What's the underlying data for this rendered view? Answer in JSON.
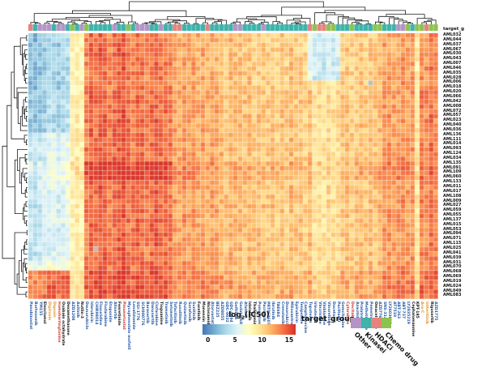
{
  "annotation_label": "target_g",
  "legend": {
    "colorbar_title": {
      "pre": "log",
      "sub": "2",
      "post": "(IC50)"
    },
    "colorbar_ticks": [
      "0",
      "5",
      "10",
      "15"
    ],
    "group_title": "target_group",
    "groups": [
      {
        "label": "Other",
        "color": "#b294c7"
      },
      {
        "label": "Kinasei",
        "color": "#3db3aa"
      },
      {
        "label": "HDACi",
        "color": "#e6837d"
      },
      {
        "label": "Chemo drug",
        "color": "#8cc34f"
      }
    ]
  },
  "chart_data": {
    "type": "heatmap",
    "value_label": "log2(IC50)",
    "value_range": [
      -1,
      16.2
    ],
    "colormap_stops": [
      "#4575b4",
      "#74add1",
      "#abd9e9",
      "#e0f3f8",
      "#ffffbf",
      "#fee090",
      "#fdae61",
      "#f46d43",
      "#d73027"
    ],
    "group_colors": {
      "O": "#b294c7",
      "K": "#3db3aa",
      "H": "#e6837d",
      "C": "#8cc34f"
    },
    "label_colors": {
      "b": "#2458a5",
      "k": "#111111",
      "r": "#cf3a2e",
      "o": "#e2992f"
    },
    "rows": [
      "AML032",
      "AML044",
      "AML037",
      "AML067",
      "AML030",
      "AML043",
      "AML007",
      "AML046",
      "AML035",
      "AML028",
      "AML006",
      "AML018",
      "AML020",
      "AML066",
      "AML042",
      "AML008",
      "AML072",
      "AML057",
      "AML023",
      "AML040",
      "AML036",
      "AML136",
      "AML111",
      "AML014",
      "AML093",
      "AML124",
      "AML034",
      "AML135",
      "AML091",
      "AML109",
      "AML060",
      "AML133",
      "AML011",
      "AML017",
      "AML108",
      "AML009",
      "AML027",
      "AML059",
      "AML055",
      "AML137",
      "AML015",
      "AML053",
      "AML094",
      "AML071",
      "AML115",
      "AML025",
      "AML041",
      "AML039",
      "AML031",
      "AML070",
      "AML068",
      "AML069",
      "AML019",
      "AML024",
      "AML049",
      "AML083"
    ],
    "columns": {
      "names": [
        "Panobinostat",
        "Bortezomib",
        "YM155",
        "Elesclomol",
        "Digitoxin",
        "Digoxin",
        "Homoharringtonine",
        "Ouabain octahydrate",
        "Dexamethasone",
        "AZD1208",
        "Axitinib",
        "Nutlin-3",
        "Daunorubicin",
        "Idarubicin",
        "CHIR98014",
        "Floxuridine",
        "Fludarabine",
        "Etoposide",
        "Alisertib",
        "Fenretinide",
        "Pinometostat",
        "Mycophenolate mofetil",
        "Lenalidomide",
        "SGI-1776",
        "SCH900776",
        "Barasertib",
        "Danusertib",
        "Clofarabine",
        "Tioguanine",
        "Trametinib",
        "Selumetinib",
        "Tofacitinib",
        "Ruxolitinib",
        "Quizartinib",
        "Sorafenib",
        "Sunitinib",
        "Foretinib",
        "Monensin",
        "Niclosamide",
        "Atorvastatin",
        "BEZ235",
        "AZD8055",
        "GDC-0032",
        "GDC-0994",
        "Gefitinib",
        "Gedatolisib",
        "Afatinib",
        "Idelalisib",
        "Thalidomide",
        "Pomalidomide",
        "Pacritinib",
        "PRT062607",
        "Ibrutinib",
        "TAE684",
        "Crenolanib",
        "Doxorubicin",
        "Mitoxantrone",
        "Epirubicin",
        "Teniposide",
        "Camptothecine",
        "Topotecan",
        "Irinotecan",
        "Vincristine",
        "Vinblastine",
        "Vinorelbine",
        "Docetaxel",
        "Paclitaxel",
        "Gemcitabine",
        "Cytarabine",
        "Decitabine",
        "Azacitidine",
        "Pralatrexate",
        "Methotrexate",
        "Pemetrexed",
        "Omacetaxine",
        "AZD7762",
        "SNS-314",
        "LY2603618",
        "AT7519",
        "ABT-263",
        "ABT-737",
        "LY2835219",
        "Cephalomannine",
        "KPT-185",
        "Ara-C",
        "Gilteritinib",
        "Rigosertib",
        "AZD1775"
      ],
      "groups": "HKOOOKOOKCKOCKKKKKOKKCKOOOKKOKKHHKKKKKHKKKKKOOKKKKOKKKKKKKKKHCHHCCKKKCKKKKCCKKKOOCKCCHCC",
      "label_color_codes": "bbbkoorkkbbkbbbbbbbkrbbbbbbbkbbbbbbbkkkbbbbbbbbkkbbbbbbbbbbbbbbbbbbbrrbbbbkbbbbbbbkkookb"
    },
    "col_bases": [
      6,
      5.5,
      6,
      6.5,
      7,
      7,
      6.5,
      7,
      7.5,
      8.5,
      9,
      8.5,
      13.5,
      14.5,
      14,
      15,
      14.5,
      13.5,
      14.2,
      14.8,
      15,
      14,
      13.6,
      14.4,
      14,
      13.5,
      14.2,
      14.6,
      13.8,
      14,
      13.6,
      12.5,
      12,
      12.8,
      12.2,
      12.6,
      12,
      12.4,
      11.8,
      12.2,
      12,
      11.5,
      11,
      11.8,
      11.2,
      11.5,
      11,
      11.4,
      10.8,
      11.2,
      11,
      10.8,
      11.2,
      10.5,
      11,
      10.6,
      11.4,
      10.8,
      11,
      10.5,
      11.2,
      9.5,
      9.8,
      9.4,
      10,
      9.6,
      9.8,
      10.8,
      11.2,
      10.6,
      11,
      11.4,
      10.8,
      11.2,
      11,
      11.5,
      12.5,
      12.8,
      12.2,
      12.6,
      13,
      12.4,
      12.8,
      9.2,
      13.5,
      13,
      14,
      13.2
    ],
    "row_offsets": [
      -0.3,
      -0.3,
      -0.3,
      -0.3,
      -0.3,
      -0.3,
      -0.3,
      -0.3,
      -0.3,
      -0.3,
      -0.3,
      -0.3,
      0,
      0,
      0,
      0,
      0,
      0,
      0,
      0,
      0,
      0,
      0,
      0,
      0,
      0,
      0,
      0.7,
      0.7,
      0.7,
      0.7,
      0,
      0,
      0,
      0,
      0,
      0,
      0,
      0,
      0,
      0,
      0,
      0,
      0,
      0,
      0,
      0,
      0,
      0,
      0,
      0.9,
      0.9,
      0.9,
      0.9,
      0.9,
      0.9
    ],
    "adjustments": [
      {
        "rows": [
          0,
          20
        ],
        "cols": [
          0,
          8
        ],
        "delta": -3.5
      },
      {
        "rows": [
          21,
          47
        ],
        "cols": [
          0,
          8
        ],
        "delta": -1.5
      },
      {
        "rows": [
          50,
          55
        ],
        "cols": [
          0,
          8
        ],
        "delta": 6.5
      },
      {
        "rows": [
          0,
          9
        ],
        "cols": [
          60,
          66
        ],
        "delta": -4.5
      },
      {
        "rows": [
          27,
          30
        ],
        "cols": [
          12,
          30
        ],
        "delta": 1.2
      }
    ],
    "noise_amp": 2.6,
    "na_cells": [
      [
        45,
        14
      ],
      [
        10,
        73
      ]
    ],
    "na_color": "#bdbdbd"
  }
}
